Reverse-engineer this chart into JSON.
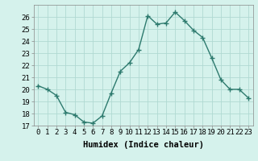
{
  "x": [
    0,
    1,
    2,
    3,
    4,
    5,
    6,
    7,
    8,
    9,
    10,
    11,
    12,
    13,
    14,
    15,
    16,
    17,
    18,
    19,
    20,
    21,
    22,
    23
  ],
  "y": [
    20.3,
    20.0,
    19.5,
    18.1,
    17.9,
    17.3,
    17.2,
    17.8,
    19.7,
    21.5,
    22.2,
    23.3,
    26.1,
    25.4,
    25.5,
    26.4,
    25.7,
    24.9,
    24.3,
    22.6,
    20.8,
    20.0,
    20.0,
    19.3
  ],
  "line_color": "#2d7a6e",
  "marker": "+",
  "bg_color": "#d5f2ec",
  "grid_color": "#b0d9d2",
  "xlabel": "Humidex (Indice chaleur)",
  "ylim": [
    17,
    27
  ],
  "yticks": [
    17,
    18,
    19,
    20,
    21,
    22,
    23,
    24,
    25,
    26
  ],
  "xticks": [
    0,
    1,
    2,
    3,
    4,
    5,
    6,
    7,
    8,
    9,
    10,
    11,
    12,
    13,
    14,
    15,
    16,
    17,
    18,
    19,
    20,
    21,
    22,
    23
  ],
  "xlabel_fontsize": 7.5,
  "tick_fontsize": 6.5,
  "line_width": 1.0,
  "marker_size": 4,
  "marker_edge_width": 1.0
}
